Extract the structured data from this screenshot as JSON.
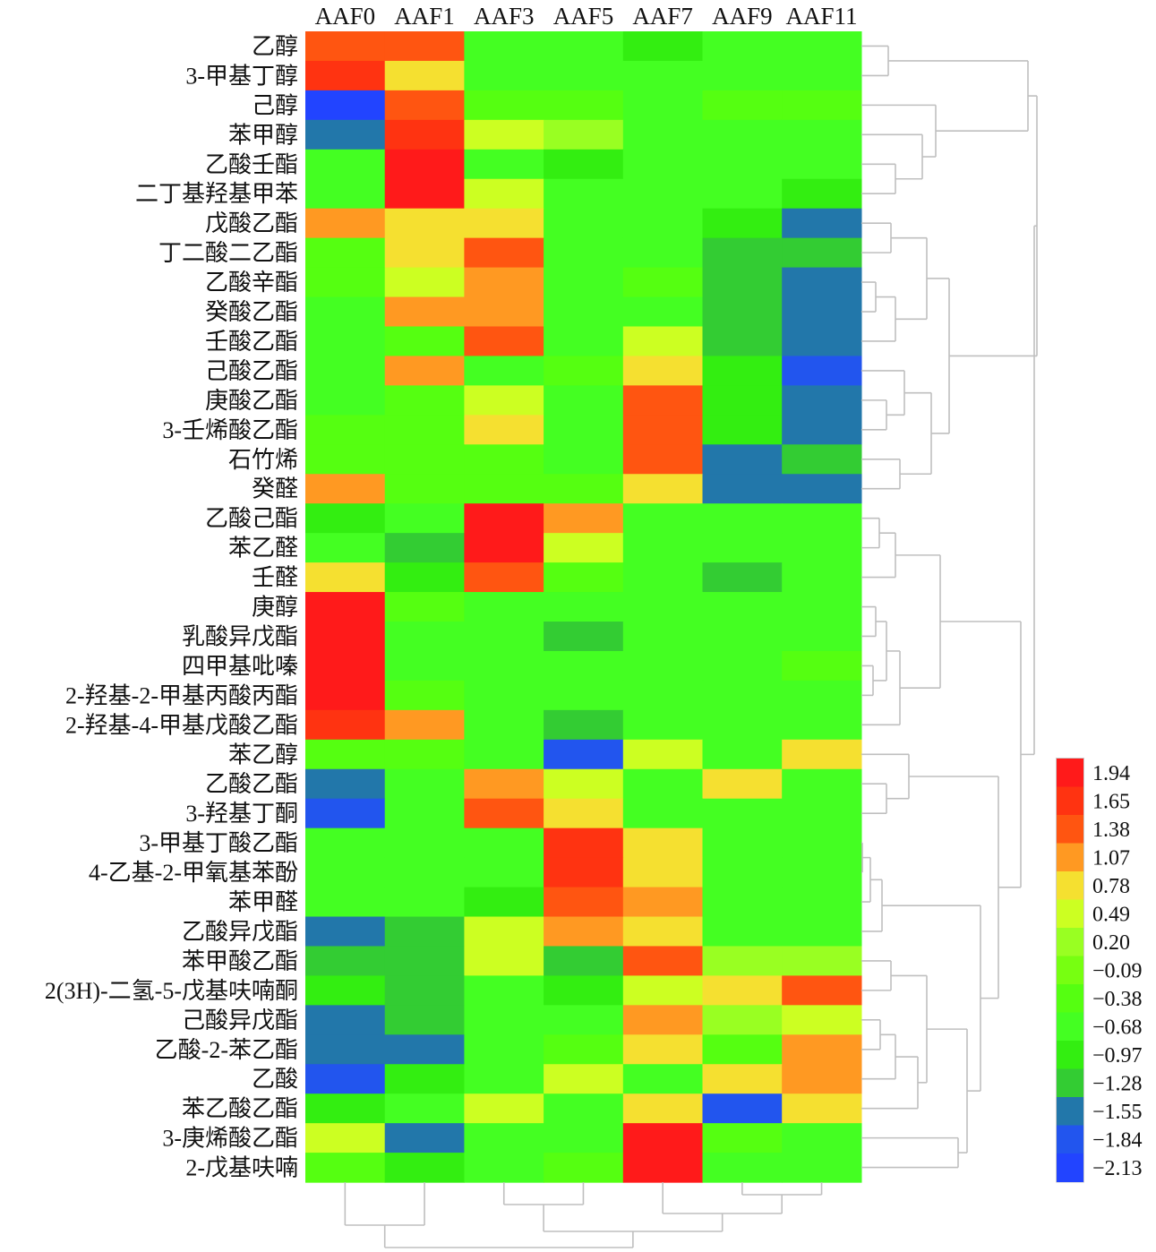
{
  "chart_data": {
    "type": "heatmap",
    "title": "",
    "xlabel": "",
    "ylabel": "",
    "columns": [
      "AAF0",
      "AAF1",
      "AAF3",
      "AAF5",
      "AAF7",
      "AAF9",
      "AAF11"
    ],
    "rows": [
      "乙醇",
      "3-甲基丁醇",
      "己醇",
      "苯甲醇",
      "乙酸壬酯",
      "二丁基羟基甲苯",
      "戊酸乙酯",
      "丁二酸二乙酯",
      "乙酸辛酯",
      "癸酸乙酯",
      "壬酸乙酯",
      "己酸乙酯",
      "庚酸乙酯",
      "3-壬烯酸乙酯",
      "石竹烯",
      "癸醛",
      "乙酸己酯",
      "苯乙醛",
      "壬醛",
      "庚醇",
      "乳酸异戊酯",
      "四甲基吡嗪",
      "2-羟基-2-甲基丙酸丙酯",
      "2-羟基-4-甲基戊酸乙酯",
      "苯乙醇",
      "乙酸乙酯",
      "3-羟基丁酮",
      "3-甲基丁酸乙酯",
      "4-乙基-2-甲氧基苯酚",
      "苯甲醛",
      "乙酸异戊酯",
      "苯甲酸乙酯",
      "2(3H)-二氢-5-戊基呋喃酮",
      "己酸异戊酯",
      "乙酸-2-苯乙酯",
      "乙酸",
      "苯乙酸乙酯",
      "3-庚烯酸乙酯",
      "2-戊基呋喃"
    ],
    "values": [
      [
        1.38,
        1.38,
        -0.68,
        -0.68,
        -0.97,
        -0.68,
        -0.68
      ],
      [
        1.65,
        0.78,
        -0.68,
        -0.68,
        -0.68,
        -0.68,
        -0.68
      ],
      [
        -2.13,
        1.38,
        -0.38,
        -0.38,
        -0.68,
        -0.38,
        -0.38
      ],
      [
        -1.55,
        1.65,
        0.49,
        0.2,
        -0.68,
        -0.68,
        -0.68
      ],
      [
        -0.68,
        1.94,
        -0.68,
        -0.97,
        -0.68,
        -0.68,
        -0.68
      ],
      [
        -0.68,
        1.94,
        0.49,
        -0.68,
        -0.68,
        -0.68,
        -0.97
      ],
      [
        1.07,
        0.78,
        0.78,
        -0.68,
        -0.68,
        -0.97,
        -1.55
      ],
      [
        -0.38,
        0.78,
        1.38,
        -0.68,
        -0.68,
        -1.28,
        -1.28
      ],
      [
        -0.38,
        0.49,
        1.07,
        -0.68,
        -0.38,
        -1.28,
        -1.55
      ],
      [
        -0.68,
        1.07,
        1.07,
        -0.68,
        -0.68,
        -1.28,
        -1.55
      ],
      [
        -0.68,
        -0.38,
        1.38,
        -0.68,
        0.49,
        -1.28,
        -1.55
      ],
      [
        -0.68,
        1.07,
        -0.68,
        -0.38,
        0.78,
        -0.97,
        -1.84
      ],
      [
        -0.68,
        -0.38,
        0.49,
        -0.68,
        1.38,
        -0.97,
        -1.55
      ],
      [
        -0.38,
        -0.38,
        0.78,
        -0.68,
        1.38,
        -0.97,
        -1.55
      ],
      [
        -0.38,
        -0.38,
        -0.38,
        -0.68,
        1.38,
        -1.55,
        -1.28
      ],
      [
        1.07,
        -0.38,
        -0.38,
        -0.38,
        0.78,
        -1.55,
        -1.55
      ],
      [
        -0.97,
        -0.68,
        1.94,
        1.07,
        -0.68,
        -0.68,
        -0.68
      ],
      [
        -0.68,
        -1.28,
        1.94,
        0.49,
        -0.68,
        -0.68,
        -0.68
      ],
      [
        0.78,
        -0.97,
        1.38,
        -0.38,
        -0.68,
        -1.28,
        -0.68
      ],
      [
        1.94,
        -0.38,
        -0.68,
        -0.68,
        -0.68,
        -0.68,
        -0.68
      ],
      [
        1.94,
        -0.68,
        -0.68,
        -1.28,
        -0.68,
        -0.68,
        -0.68
      ],
      [
        1.94,
        -0.68,
        -0.68,
        -0.68,
        -0.68,
        -0.68,
        -0.38
      ],
      [
        1.94,
        -0.38,
        -0.68,
        -0.68,
        -0.68,
        -0.68,
        -0.68
      ],
      [
        1.65,
        1.07,
        -0.68,
        -1.28,
        -0.68,
        -0.68,
        -0.68
      ],
      [
        -0.38,
        -0.38,
        -0.68,
        -1.84,
        0.49,
        -0.68,
        0.78
      ],
      [
        -1.55,
        -0.68,
        1.07,
        0.49,
        -0.68,
        0.78,
        -0.68
      ],
      [
        -1.84,
        -0.68,
        1.38,
        0.78,
        -0.68,
        -0.68,
        -0.68
      ],
      [
        -0.68,
        -0.68,
        -0.68,
        1.65,
        0.78,
        -0.68,
        -0.68
      ],
      [
        -0.68,
        -0.68,
        -0.68,
        1.65,
        0.78,
        -0.68,
        -0.68
      ],
      [
        -0.68,
        -0.68,
        -0.97,
        1.38,
        1.07,
        -0.68,
        -0.68
      ],
      [
        -1.55,
        -1.28,
        0.49,
        1.07,
        0.78,
        -0.68,
        -0.68
      ],
      [
        -1.28,
        -1.28,
        0.49,
        -1.28,
        1.38,
        0.2,
        0.2
      ],
      [
        -0.97,
        -1.28,
        -0.68,
        -0.97,
        0.49,
        0.78,
        1.38
      ],
      [
        -1.55,
        -1.28,
        -0.68,
        -0.68,
        1.07,
        0.2,
        0.49
      ],
      [
        -1.55,
        -1.55,
        -0.68,
        -0.38,
        0.78,
        -0.38,
        1.07
      ],
      [
        -1.84,
        -0.97,
        -0.68,
        0.49,
        -0.68,
        0.78,
        1.07
      ],
      [
        -0.97,
        -0.68,
        0.49,
        -0.68,
        0.78,
        -1.84,
        0.78
      ],
      [
        0.49,
        -1.55,
        -0.68,
        -0.68,
        1.94,
        -0.38,
        -0.68
      ],
      [
        -0.38,
        -0.97,
        -0.68,
        -0.38,
        1.94,
        -0.68,
        -0.68
      ]
    ],
    "legend": {
      "placement": "right",
      "labels": [
        "1.94",
        "1.65",
        "1.38",
        "1.07",
        "0.78",
        "0.49",
        "0.20",
        "−0.09",
        "−0.38",
        "−0.68",
        "−0.97",
        "−1.28",
        "−1.55",
        "−1.84",
        "−2.13"
      ],
      "values": [
        1.94,
        1.65,
        1.38,
        1.07,
        0.78,
        0.49,
        0.2,
        -0.09,
        -0.38,
        -0.68,
        -0.97,
        -1.28,
        -1.55,
        -1.84,
        -2.13
      ],
      "colors": [
        "#ff1a1a",
        "#ff3311",
        "#ff5511",
        "#ff9922",
        "#f5e030",
        "#ccff22",
        "#99ff22",
        "#77ff11",
        "#55ff11",
        "#44ff22",
        "#33ee11",
        "#33cc33",
        "#2277aa",
        "#2255ee",
        "#2244ff"
      ]
    },
    "row_dendrogram": true,
    "column_dendrogram": true
  }
}
